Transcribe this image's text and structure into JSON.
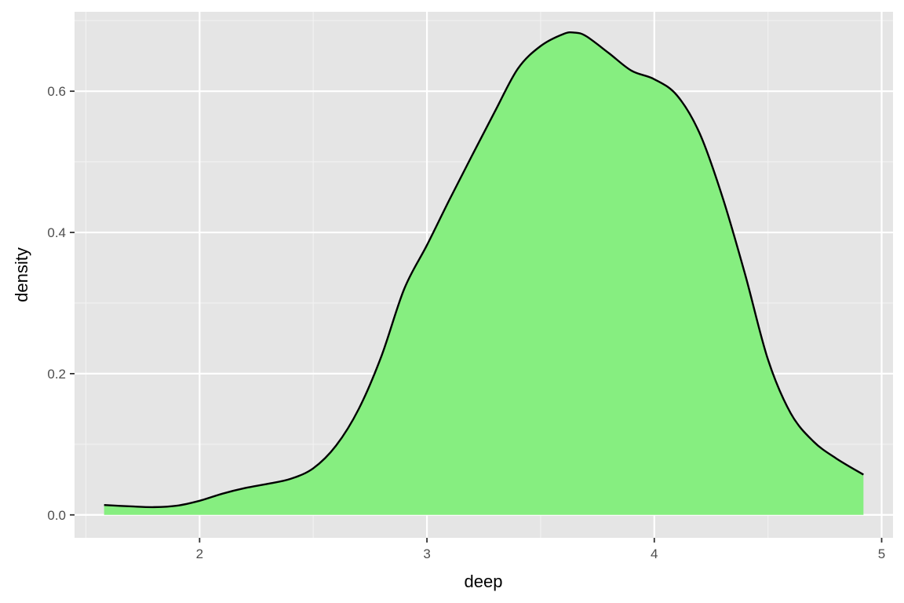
{
  "chart_data": {
    "type": "area",
    "title": "",
    "xlabel": "deep",
    "ylabel": "density",
    "xlim": [
      1.45,
      5.05
    ],
    "ylim": [
      -0.0325,
      0.7125
    ],
    "x_ticks": [
      2,
      3,
      4,
      5
    ],
    "x_tick_labels": [
      "2",
      "3",
      "4",
      "5"
    ],
    "y_ticks": [
      0.0,
      0.2,
      0.4,
      0.6
    ],
    "y_tick_labels": [
      "0.0",
      "0.2",
      "0.4",
      "0.6"
    ],
    "grid": true,
    "fill_color": "#86ee80",
    "line_color": "#000000",
    "panel_background": "#e5e5e5",
    "series": [
      {
        "x": [
          1.58,
          1.7,
          1.8,
          1.9,
          2.0,
          2.1,
          2.2,
          2.3,
          2.4,
          2.5,
          2.6,
          2.7,
          2.8,
          2.9,
          3.0,
          3.1,
          3.2,
          3.3,
          3.4,
          3.5,
          3.6,
          3.65,
          3.7,
          3.8,
          3.9,
          4.0,
          4.1,
          4.2,
          4.3,
          4.4,
          4.5,
          4.6,
          4.7,
          4.8,
          4.92
        ],
        "y": [
          0.014,
          0.012,
          0.011,
          0.013,
          0.02,
          0.03,
          0.038,
          0.044,
          0.051,
          0.066,
          0.098,
          0.15,
          0.225,
          0.32,
          0.382,
          0.447,
          0.51,
          0.572,
          0.632,
          0.664,
          0.681,
          0.683,
          0.678,
          0.654,
          0.629,
          0.617,
          0.594,
          0.54,
          0.45,
          0.34,
          0.22,
          0.144,
          0.104,
          0.08,
          0.057
        ]
      }
    ]
  }
}
